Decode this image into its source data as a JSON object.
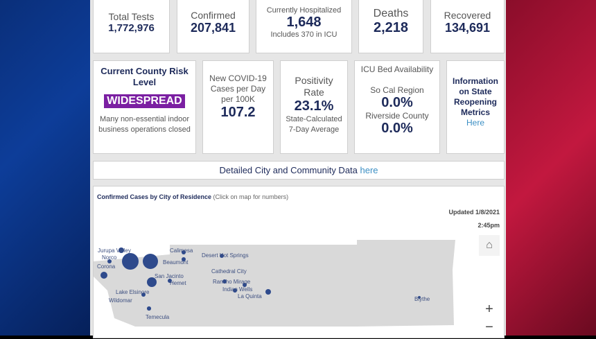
{
  "stats": {
    "total_tests": {
      "label": "Total Tests",
      "value": "1,772,976"
    },
    "confirmed": {
      "label": "Confirmed",
      "value": "207,841"
    },
    "hospitalized": {
      "label": "Currently Hospitalized",
      "value": "1,648",
      "note": "Includes 370 in ICU"
    },
    "deaths": {
      "label": "Deaths",
      "value": "2,218"
    },
    "recovered": {
      "label": "Recovered",
      "value": "134,691"
    }
  },
  "risk": {
    "title": "Current County Risk Level",
    "badge": "WIDESPREAD",
    "badge_color": "#7b1fa2",
    "desc": "Many non-essential indoor business operations closed"
  },
  "new_cases": {
    "label": "New COVID-19 Cases per Day per 100K",
    "value": "107.2"
  },
  "positivity": {
    "label": "Positivity Rate",
    "value": "23.1%",
    "note": "State-Calculated 7-Day Average"
  },
  "icu": {
    "title": "ICU Bed Availability",
    "region_label": "So Cal Region",
    "region_value": "0.0%",
    "county_label": "Riverside County",
    "county_value": "0.0%"
  },
  "info": {
    "text": "Information on State Reopening Metrics",
    "link": "Here"
  },
  "detail": {
    "text": "Detailed City and Community Data ",
    "link": "here"
  },
  "map": {
    "title": "Confirmed Cases by City of Residence",
    "subtitle": " (Click on map for numbers)",
    "updated": "Updated 1/8/2021",
    "time": "2:45pm",
    "cities": [
      "Jurupa Valley",
      "Norco",
      "Corona",
      "Calimesa",
      "Beaumont",
      "San Jacinto",
      "Hemet",
      "Lake Elsinore",
      "Wildomar",
      "Temecula",
      "Desert Hot Springs",
      "Cathedral City",
      "Rancho Mirage",
      "Indian Wells",
      "La Quinta",
      "Blythe"
    ],
    "zoom_in": "+",
    "zoom_out": "−"
  }
}
